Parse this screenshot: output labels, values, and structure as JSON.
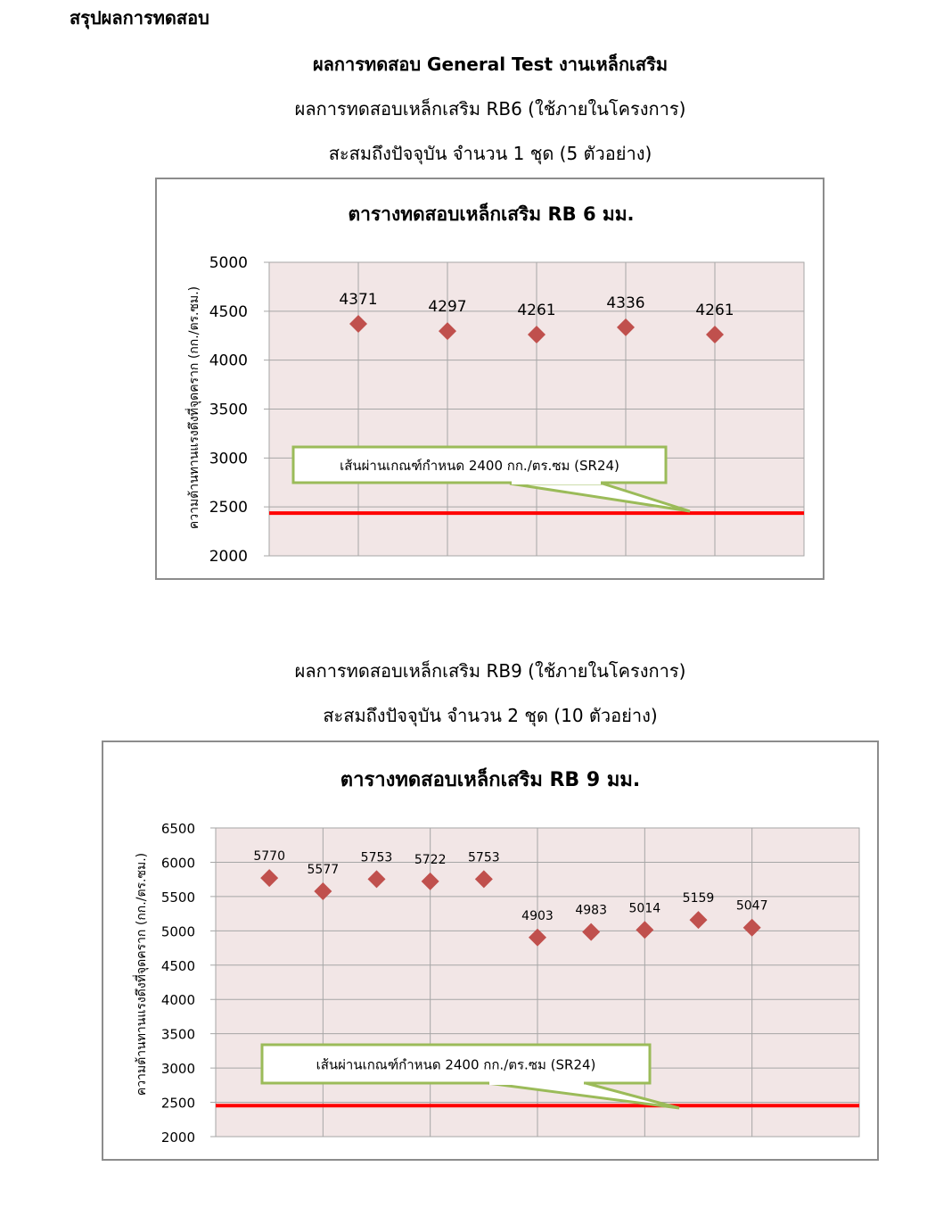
{
  "document": {
    "heading": "สรุปผลการทดสอบ",
    "section_title": "ผลการทดสอบ General Test งานเหล็กเสริม",
    "rb6_subtitle": "ผลการทดสอบเหล็กเสริม RB6 (ใช้ภายในโครงการ)",
    "rb6_count": "สะสมถึงปัจจุบัน จำนวน  1 ชุด (5 ตัวอย่าง)",
    "rb9_subtitle": "ผลการทดสอบเหล็กเสริม RB9 (ใช้ภายในโครงการ)",
    "rb9_count": "สะสมถึงปัจจุบัน จำนวน 2 ชุด (10 ตัวอย่าง)"
  },
  "colors": {
    "marker": "#c0504d",
    "threshold": "#ff0000",
    "plot_bg": "#f2e6e6",
    "callout_border": "#9bbb59",
    "grid": "#a6a6a6"
  },
  "chart_data": [
    {
      "type": "scatter",
      "title": "ตารางทดสอบเหล็กเสริม RB 6 มม.",
      "ylabel": "ความต้านทานแรงดึงที่จุดคราก (กก./ตร.ซม.)",
      "ylim": [
        2000,
        5000
      ],
      "yticks": [
        "2000",
        "2500",
        "3000",
        "3500",
        "4000",
        "4500",
        "5000"
      ],
      "xlim": [
        0,
        6
      ],
      "grid": true,
      "marker": "diamond",
      "x": [
        1,
        2,
        3,
        4,
        5
      ],
      "values": [
        4371,
        4297,
        4261,
        4336,
        4261
      ],
      "data_labels": [
        "4371",
        "4297",
        "4261",
        "4336",
        "4261"
      ],
      "threshold": {
        "value": 2400,
        "label": "เส้นผ่านเกณฑ์กำหนด 2400 กก./ตร.ซม (SR24)"
      }
    },
    {
      "type": "scatter",
      "title": "ตารางทดสอบเหล็กเสริม RB 9 มม.",
      "ylabel": "ความต้านทานแรงดึงที่จุดคราก (กก./ตร.ซม.)",
      "ylim": [
        2000,
        6500
      ],
      "yticks": [
        "2000",
        "2500",
        "3000",
        "3500",
        "4000",
        "4500",
        "5000",
        "5500",
        "6000",
        "6500"
      ],
      "xlim": [
        0,
        12
      ],
      "grid": true,
      "marker": "diamond",
      "x": [
        1,
        2,
        3,
        4,
        5,
        6,
        7,
        8,
        9,
        10
      ],
      "values": [
        5770,
        5577,
        5753,
        5722,
        5753,
        4903,
        4983,
        5014,
        5159,
        5047
      ],
      "data_labels": [
        "5770",
        "5577",
        "5753",
        "5722",
        "5753",
        "4903",
        "4983",
        "5014",
        "5159",
        "5047"
      ],
      "threshold": {
        "value": 2400,
        "label": "เส้นผ่านเกณฑ์กำหนด 2400 กก./ตร.ซม (SR24)"
      }
    }
  ]
}
